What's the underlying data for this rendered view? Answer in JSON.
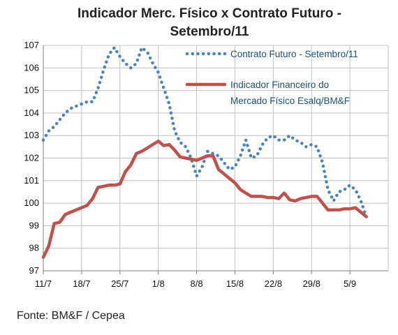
{
  "colors": {
    "series_futuro": "#4f81bd",
    "series_indicador": "#c0504d",
    "legend_text": "#1f4e79",
    "grid": "#c0c0c0",
    "axis": "#808080"
  },
  "source": "Fonte: BM&F / Cepea",
  "chart_data": {
    "type": "line",
    "title": "Indicador Merc. Físico x Contrato Futuro - Setembro/11",
    "title_lines": [
      "Indicador Merc. Físico x Contrato Futuro -",
      "Setembro/11"
    ],
    "xlabel": "",
    "ylabel": "",
    "ylim": [
      97,
      107
    ],
    "yticks": [
      "97",
      "98",
      "99",
      "100",
      "101",
      "102",
      "103",
      "104",
      "105",
      "106",
      "107"
    ],
    "xticks": [
      "11/7",
      "18/7",
      "25/7",
      "1/8",
      "8/8",
      "15/8",
      "22/8",
      "29/8",
      "5/9"
    ],
    "x_tick_positions": [
      0,
      7,
      14,
      21,
      28,
      35,
      42,
      49,
      56
    ],
    "xlim": [
      0,
      63
    ],
    "grid": true,
    "legend_position": "top-right",
    "series": [
      {
        "name": "Contrato Futuro - Setembro/11",
        "style": "dotted",
        "points": [
          [
            0,
            102.8
          ],
          [
            1,
            103.2
          ],
          [
            2,
            103.4
          ],
          [
            3,
            103.7
          ],
          [
            4,
            104.0
          ],
          [
            5,
            104.2
          ],
          [
            6,
            104.3
          ],
          [
            7,
            104.4
          ],
          [
            8,
            104.5
          ],
          [
            9,
            104.5
          ],
          [
            10,
            105.1
          ],
          [
            11,
            105.9
          ],
          [
            12,
            106.6
          ],
          [
            13,
            106.9
          ],
          [
            14,
            106.5
          ],
          [
            15,
            106.2
          ],
          [
            16,
            106.0
          ],
          [
            17,
            106.2
          ],
          [
            18,
            106.9
          ],
          [
            19,
            106.7
          ],
          [
            20,
            106.2
          ],
          [
            21,
            105.8
          ],
          [
            22,
            105.1
          ],
          [
            23,
            104.4
          ],
          [
            24,
            103.2
          ],
          [
            25,
            102.7
          ],
          [
            26,
            102.5
          ],
          [
            27,
            102.0
          ],
          [
            28,
            101.2
          ],
          [
            29,
            101.6
          ],
          [
            30,
            102.3
          ],
          [
            31,
            102.2
          ],
          [
            32,
            102.1
          ],
          [
            33,
            101.8
          ],
          [
            34,
            101.5
          ],
          [
            35,
            101.6
          ],
          [
            36,
            102.1
          ],
          [
            37,
            102.8
          ],
          [
            38,
            102.0
          ],
          [
            39,
            102.1
          ],
          [
            40,
            102.6
          ],
          [
            41,
            102.9
          ],
          [
            42,
            103.0
          ],
          [
            43,
            102.8
          ],
          [
            44,
            102.8
          ],
          [
            45,
            103.0
          ],
          [
            46,
            102.8
          ],
          [
            47,
            102.7
          ],
          [
            48,
            102.5
          ],
          [
            49,
            102.6
          ],
          [
            50,
            102.5
          ],
          [
            51,
            101.8
          ],
          [
            52,
            100.6
          ],
          [
            53,
            100.1
          ],
          [
            54,
            100.5
          ],
          [
            55,
            100.6
          ],
          [
            56,
            100.8
          ],
          [
            57,
            100.6
          ],
          [
            58,
            100.1
          ],
          [
            59,
            99.4
          ]
        ]
      },
      {
        "name": "Indicador Financeiro do Mercado Físico Esalq/BM&F",
        "name_lines": [
          "Indicador Financeiro do",
          "Mercado Físico Esalq/BM&F"
        ],
        "style": "solid",
        "points": [
          [
            0,
            97.6
          ],
          [
            1,
            98.1
          ],
          [
            2,
            99.1
          ],
          [
            3,
            99.15
          ],
          [
            4,
            99.5
          ],
          [
            5,
            99.6
          ],
          [
            6,
            99.7
          ],
          [
            7,
            99.8
          ],
          [
            8,
            99.9
          ],
          [
            9,
            100.2
          ],
          [
            10,
            100.7
          ],
          [
            11,
            100.75
          ],
          [
            12,
            100.8
          ],
          [
            13,
            100.8
          ],
          [
            14,
            100.85
          ],
          [
            15,
            101.4
          ],
          [
            16,
            101.7
          ],
          [
            17,
            102.2
          ],
          [
            18,
            102.3
          ],
          [
            19,
            102.45
          ],
          [
            20,
            102.6
          ],
          [
            21,
            102.75
          ],
          [
            22,
            102.55
          ],
          [
            23,
            102.6
          ],
          [
            24,
            102.35
          ],
          [
            25,
            102.05
          ],
          [
            26,
            102.0
          ],
          [
            27,
            101.95
          ],
          [
            28,
            101.9
          ],
          [
            29,
            102.0
          ],
          [
            30,
            102.1
          ],
          [
            31,
            102.1
          ],
          [
            32,
            101.5
          ],
          [
            33,
            101.3
          ],
          [
            34,
            101.1
          ],
          [
            35,
            100.9
          ],
          [
            36,
            100.6
          ],
          [
            37,
            100.45
          ],
          [
            38,
            100.3
          ],
          [
            39,
            100.3
          ],
          [
            40,
            100.3
          ],
          [
            41,
            100.25
          ],
          [
            42,
            100.25
          ],
          [
            43,
            100.2
          ],
          [
            44,
            100.45
          ],
          [
            45,
            100.15
          ],
          [
            46,
            100.1
          ],
          [
            47,
            100.2
          ],
          [
            48,
            100.25
          ],
          [
            49,
            100.3
          ],
          [
            50,
            100.3
          ],
          [
            51,
            100.0
          ],
          [
            52,
            99.7
          ],
          [
            53,
            99.7
          ],
          [
            54,
            99.7
          ],
          [
            55,
            99.75
          ],
          [
            56,
            99.75
          ],
          [
            57,
            99.8
          ],
          [
            58,
            99.6
          ],
          [
            59,
            99.4
          ]
        ]
      }
    ]
  }
}
